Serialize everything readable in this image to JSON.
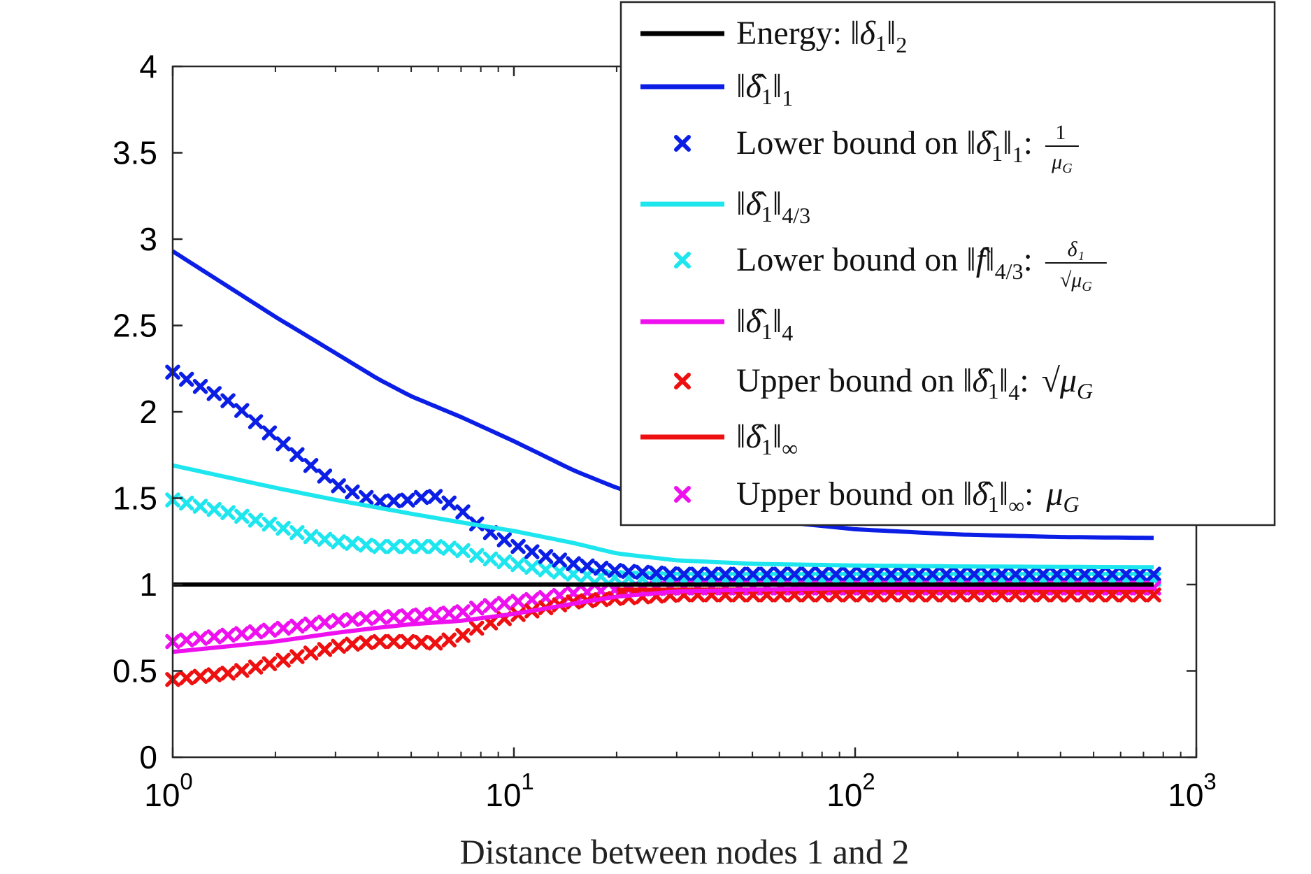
{
  "chart_data": {
    "type": "line",
    "xlabel": "Distance between nodes 1 and 2",
    "ylabel": "",
    "xscale": "log",
    "xlim": [
      1,
      1000
    ],
    "ylim": [
      0,
      4
    ],
    "grid": false,
    "legend_position": "top-right",
    "x_tick_labels": [
      {
        "base": "10",
        "exp": "0"
      },
      {
        "base": "10",
        "exp": "1"
      },
      {
        "base": "10",
        "exp": "2"
      },
      {
        "base": "10",
        "exp": "3"
      }
    ],
    "y_tick_labels": [
      "0",
      "0.5",
      "1",
      "1.5",
      "2",
      "2.5",
      "3",
      "3.5",
      "4"
    ],
    "series": [
      {
        "id": "energy",
        "style": "line",
        "color": "#000000",
        "legend": {
          "prefix": "Energy: ",
          "norm": "δ",
          "hat": false,
          "sub": "1",
          "norm_sub": "2",
          "frac": null
        },
        "x": [
          1,
          750
        ],
        "y": [
          1.0,
          1.0
        ]
      },
      {
        "id": "l1",
        "style": "line",
        "color": "#0a1ee6",
        "legend": {
          "prefix": "",
          "norm": "δ",
          "hat": true,
          "sub": "1",
          "norm_sub": "1",
          "frac": null
        },
        "x": [
          1,
          2,
          3,
          4,
          5,
          7,
          10,
          15,
          20,
          30,
          50,
          100,
          200,
          400,
          750
        ],
        "y": [
          2.93,
          2.55,
          2.34,
          2.19,
          2.09,
          1.97,
          1.83,
          1.66,
          1.56,
          1.46,
          1.38,
          1.32,
          1.29,
          1.275,
          1.27
        ]
      },
      {
        "id": "lb1",
        "style": "x",
        "color": "#0a1ee6",
        "legend": {
          "prefix": "Lower bound on ",
          "norm": "δ",
          "hat": true,
          "sub": "1",
          "norm_sub": "1",
          "frac": {
            "num": "1",
            "den": "μ_G",
            "sqrt": false
          }
        },
        "x": [
          1,
          1.5,
          2,
          2.5,
          3,
          3.5,
          4,
          5,
          5.5,
          6,
          7,
          8,
          10,
          12,
          15,
          20,
          30,
          750
        ],
        "y": [
          2.23,
          2.05,
          1.85,
          1.7,
          1.58,
          1.52,
          1.48,
          1.49,
          1.51,
          1.51,
          1.43,
          1.33,
          1.23,
          1.17,
          1.12,
          1.08,
          1.06,
          1.06
        ]
      },
      {
        "id": "l43",
        "style": "line",
        "color": "#1ee6ee",
        "legend": {
          "prefix": "",
          "norm": "δ",
          "hat": true,
          "sub": "1",
          "norm_sub": "4/3",
          "frac": null
        },
        "x": [
          1,
          2,
          3,
          5,
          7,
          10,
          15,
          20,
          30,
          50,
          100,
          200,
          750
        ],
        "y": [
          1.69,
          1.56,
          1.49,
          1.41,
          1.36,
          1.31,
          1.24,
          1.18,
          1.14,
          1.12,
          1.11,
          1.105,
          1.1
        ]
      },
      {
        "id": "lb43",
        "style": "x",
        "color": "#1ee6ee",
        "legend": {
          "prefix": "Lower bound on ",
          "norm": "f",
          "hat": true,
          "sub": "",
          "norm_sub": "4/3",
          "frac": {
            "num": "δ₁",
            "den": "μ_G",
            "sqrt": true
          }
        },
        "x": [
          1,
          1.5,
          2,
          2.5,
          3,
          4,
          5,
          6,
          7,
          8,
          10,
          12,
          15,
          20,
          30,
          750
        ],
        "y": [
          1.49,
          1.41,
          1.34,
          1.28,
          1.25,
          1.22,
          1.22,
          1.22,
          1.2,
          1.16,
          1.12,
          1.09,
          1.06,
          1.04,
          1.03,
          1.03
        ]
      },
      {
        "id": "l4",
        "style": "line",
        "color": "#ee10ee",
        "legend": {
          "prefix": "",
          "norm": "δ",
          "hat": true,
          "sub": "1",
          "norm_sub": "4",
          "frac": null
        },
        "x": [
          1,
          2,
          3,
          4,
          5,
          7,
          10,
          15,
          20,
          30,
          50,
          100,
          750
        ],
        "y": [
          0.61,
          0.67,
          0.72,
          0.75,
          0.77,
          0.79,
          0.83,
          0.89,
          0.93,
          0.96,
          0.97,
          0.98,
          0.98
        ]
      },
      {
        "id": "ub4",
        "style": "x",
        "color": "#ee1010",
        "legend": {
          "prefix": "Upper bound on ",
          "norm": "δ",
          "hat": true,
          "sub": "1",
          "norm_sub": "4",
          "frac": {
            "num": "",
            "den": "μ_G",
            "sqrt": true
          }
        },
        "x": [
          1,
          1.5,
          2,
          2.5,
          3,
          3.5,
          4,
          5,
          6,
          7,
          8,
          10,
          12,
          15,
          20,
          30,
          750
        ],
        "y": [
          0.45,
          0.49,
          0.55,
          0.6,
          0.64,
          0.66,
          0.67,
          0.67,
          0.66,
          0.7,
          0.76,
          0.82,
          0.86,
          0.9,
          0.92,
          0.94,
          0.94
        ]
      },
      {
        "id": "linf",
        "style": "line",
        "color": "#ee1010",
        "legend": {
          "prefix": "",
          "norm": "δ",
          "hat": true,
          "sub": "1",
          "norm_sub": "∞",
          "frac": null
        },
        "x": [
          20,
          750
        ],
        "y": [
          0.97,
          0.97
        ]
      },
      {
        "id": "ubinf",
        "style": "x",
        "color": "#ee10ee",
        "legend": {
          "prefix": "Upper bound on ",
          "norm": "δ",
          "hat": true,
          "sub": "1",
          "norm_sub": "∞",
          "frac": {
            "num": "",
            "den": "μ_G",
            "sqrt": false
          }
        },
        "x": [
          1,
          1.5,
          2,
          2.5,
          3,
          4,
          5,
          6,
          7,
          8,
          10,
          12,
          15,
          20,
          30,
          750
        ],
        "y": [
          0.67,
          0.71,
          0.74,
          0.77,
          0.79,
          0.81,
          0.82,
          0.83,
          0.84,
          0.87,
          0.9,
          0.92,
          0.95,
          0.97,
          0.98,
          0.98
        ]
      }
    ]
  }
}
